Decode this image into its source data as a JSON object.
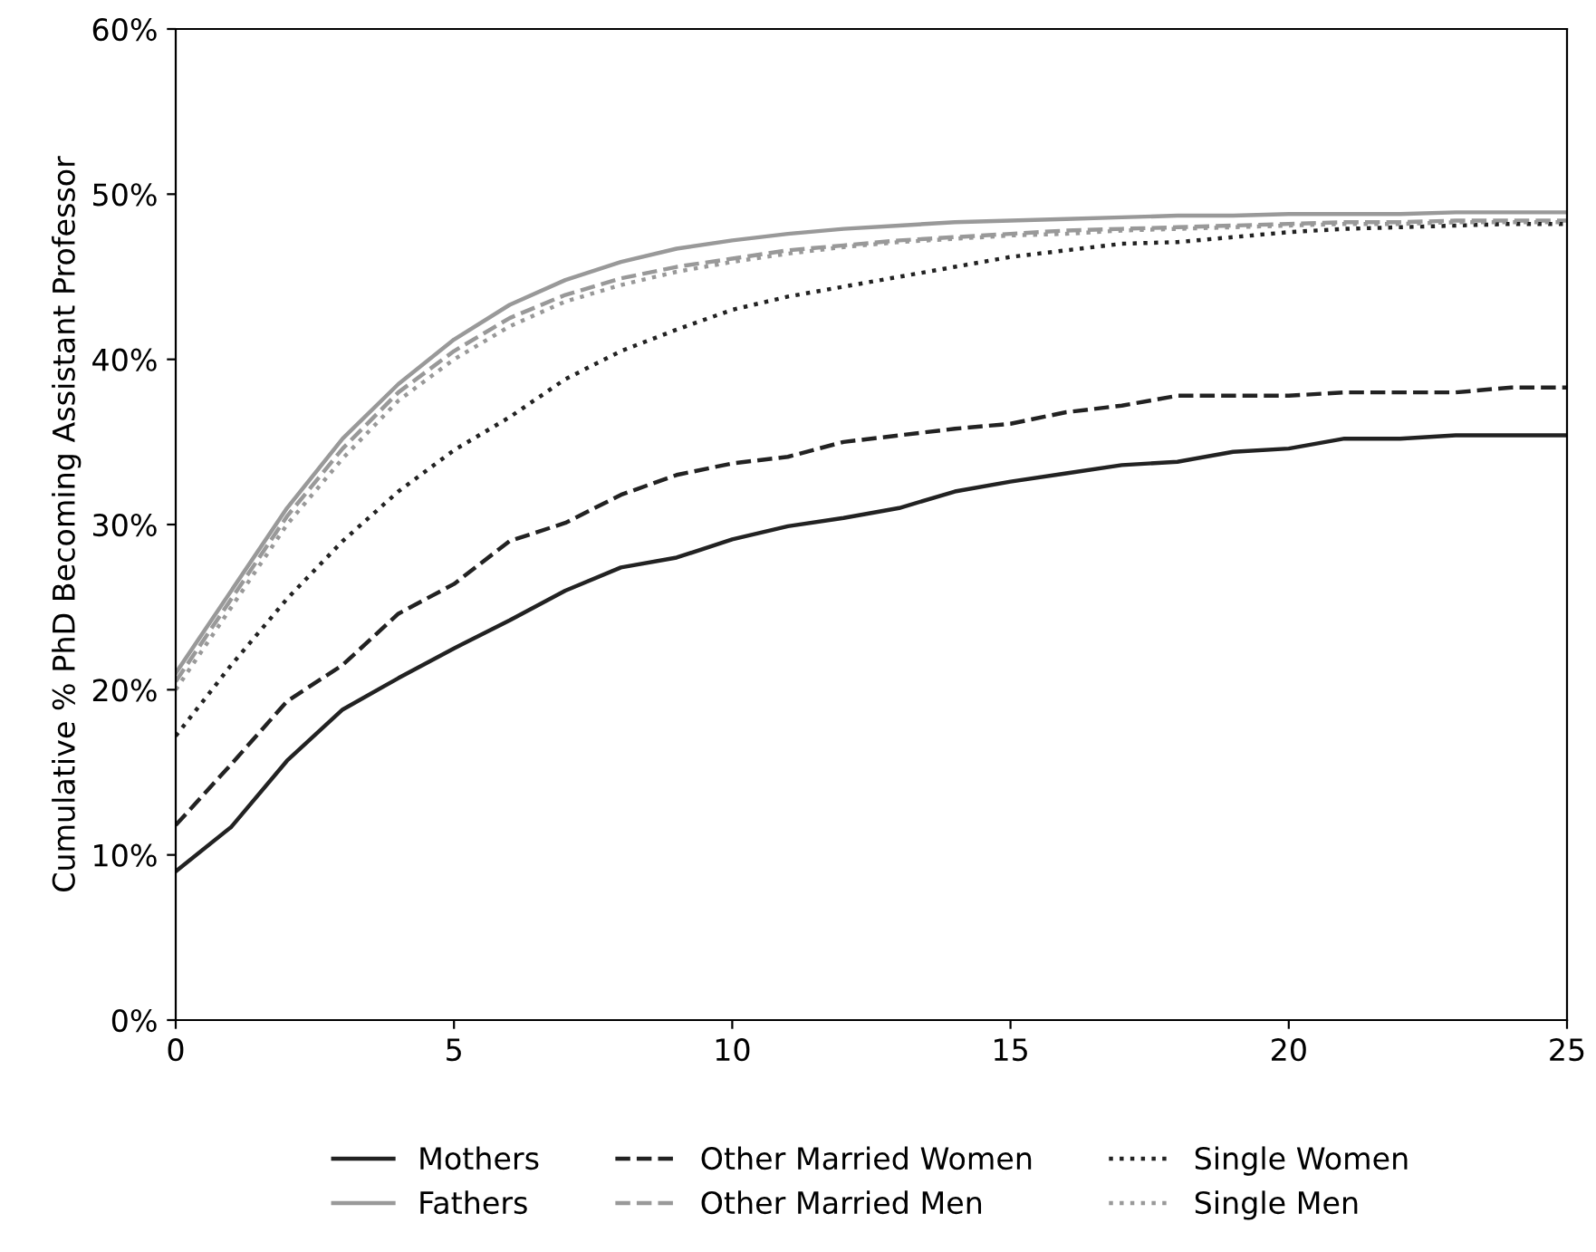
{
  "chart_data": {
    "type": "line",
    "ylabel": "Cumulative % PhD Becoming Assistant Professor",
    "x": [
      0,
      1,
      2,
      3,
      4,
      5,
      6,
      7,
      8,
      9,
      10,
      11,
      12,
      13,
      14,
      15,
      16,
      17,
      18,
      19,
      20,
      21,
      22,
      23,
      24,
      25
    ],
    "xlim": [
      0,
      25
    ],
    "xticks": [
      0,
      5,
      10,
      15,
      20,
      25
    ],
    "ylim": [
      0,
      60
    ],
    "yticks": [
      {
        "value": 0,
        "label": "0%"
      },
      {
        "value": 10,
        "label": "10%"
      },
      {
        "value": 20,
        "label": "20%"
      },
      {
        "value": 30,
        "label": "30%"
      },
      {
        "value": 40,
        "label": "40%"
      },
      {
        "value": 50,
        "label": "50%"
      },
      {
        "value": 60,
        "label": "60%"
      }
    ],
    "grid": false,
    "legend": "bottom",
    "marker": "none",
    "series": [
      {
        "name": "Mothers",
        "color": "#222222",
        "line_style": "solid",
        "values": [
          9.0,
          11.7,
          15.7,
          18.8,
          20.7,
          22.5,
          24.2,
          26.0,
          27.4,
          28.0,
          29.1,
          29.9,
          30.4,
          31.0,
          32.0,
          32.6,
          33.1,
          33.6,
          33.8,
          34.4,
          34.6,
          35.2,
          35.2,
          35.4,
          35.4,
          35.4
        ]
      },
      {
        "name": "Fathers",
        "color": "#999999",
        "line_style": "solid",
        "values": [
          21.0,
          26.0,
          31.0,
          35.2,
          38.5,
          41.2,
          43.3,
          44.8,
          45.9,
          46.7,
          47.2,
          47.6,
          47.9,
          48.1,
          48.3,
          48.4,
          48.5,
          48.6,
          48.7,
          48.7,
          48.8,
          48.8,
          48.8,
          48.9,
          48.9,
          48.9
        ]
      },
      {
        "name": "Other Married Women",
        "color": "#222222",
        "line_style": "dashed",
        "values": [
          11.8,
          15.5,
          19.3,
          21.5,
          24.6,
          26.4,
          29.0,
          30.1,
          31.8,
          33.0,
          33.7,
          34.1,
          35.0,
          35.4,
          35.8,
          36.1,
          36.8,
          37.2,
          37.8,
          37.8,
          37.8,
          38.0,
          38.0,
          38.0,
          38.3,
          38.3
        ]
      },
      {
        "name": "Other Married Men",
        "color": "#999999",
        "line_style": "dashed",
        "values": [
          20.5,
          25.5,
          30.5,
          34.6,
          38.0,
          40.5,
          42.5,
          43.9,
          44.9,
          45.6,
          46.1,
          46.6,
          46.9,
          47.2,
          47.4,
          47.6,
          47.8,
          47.9,
          48.0,
          48.1,
          48.2,
          48.3,
          48.3,
          48.4,
          48.4,
          48.4
        ]
      },
      {
        "name": "Single Women",
        "color": "#222222",
        "line_style": "dotted",
        "values": [
          17.2,
          21.5,
          25.5,
          29.0,
          32.0,
          34.5,
          36.5,
          38.8,
          40.5,
          41.8,
          43.0,
          43.8,
          44.4,
          45.0,
          45.6,
          46.2,
          46.6,
          47.0,
          47.1,
          47.4,
          47.7,
          47.9,
          48.0,
          48.1,
          48.2,
          48.2
        ]
      },
      {
        "name": "Single Men",
        "color": "#999999",
        "line_style": "dotted",
        "values": [
          20.0,
          25.0,
          30.0,
          34.0,
          37.5,
          40.0,
          42.0,
          43.5,
          44.5,
          45.3,
          45.9,
          46.4,
          46.8,
          47.1,
          47.3,
          47.5,
          47.6,
          47.8,
          47.9,
          48.0,
          48.1,
          48.2,
          48.2,
          48.3,
          48.3,
          48.3
        ]
      }
    ]
  }
}
